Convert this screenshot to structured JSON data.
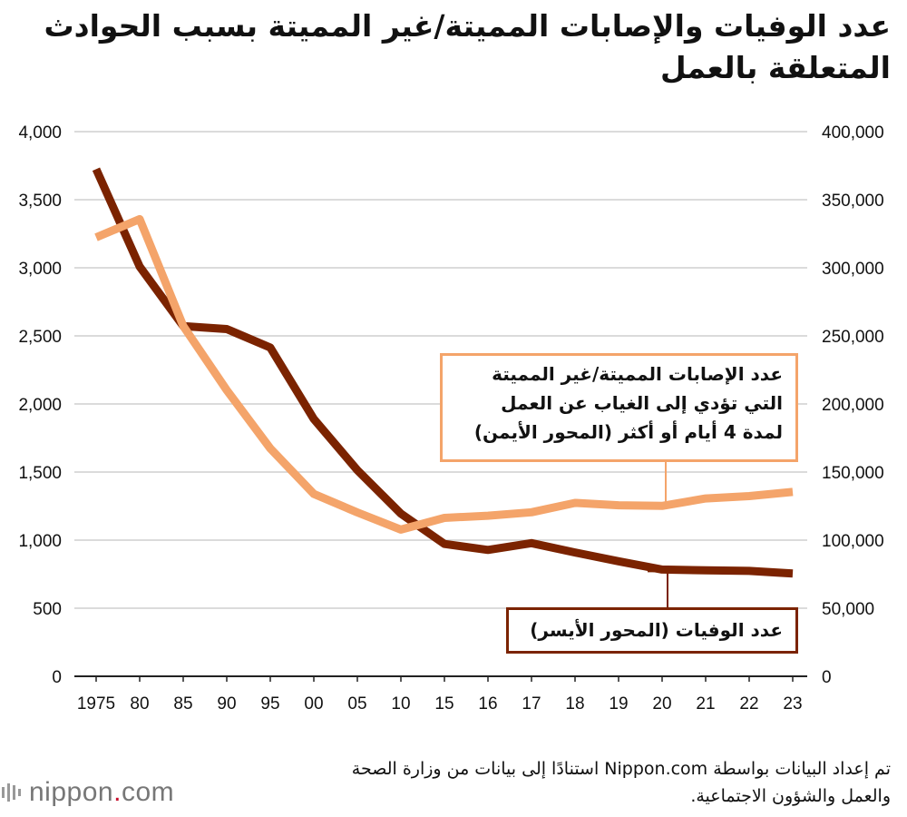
{
  "chart_data": {
    "type": "line",
    "title_lines": [
      "عدد الوفيات والإصابات المميتة/غير المميتة بسبب الحوادث",
      "المتعلقة بالعمل"
    ],
    "categories": [
      "1975",
      "80",
      "85",
      "90",
      "95",
      "00",
      "05",
      "10",
      "15",
      "16",
      "17",
      "18",
      "19",
      "20",
      "21",
      "22",
      "23"
    ],
    "left_axis": {
      "min": 0,
      "max": 4000,
      "ticks": [
        "0",
        "500",
        "1,000",
        "1,500",
        "2,000",
        "2,500",
        "3,000",
        "3,500",
        "4,000"
      ]
    },
    "right_axis": {
      "min": 0,
      "max": 400000,
      "ticks": [
        "0",
        "50,000",
        "100,000",
        "150,000",
        "200,000",
        "250,000",
        "300,000",
        "350,000",
        "400,000"
      ]
    },
    "grid": true,
    "series": [
      {
        "name": "عدد الوفيات (المحور الأيسر)",
        "axis": "left",
        "color": "#7b2300",
        "values": [
          3725,
          3009,
          2572,
          2550,
          2414,
          1889,
          1514,
          1195,
          972,
          928,
          978,
          909,
          845,
          784,
          778,
          774,
          755
        ]
      },
      {
        "name": "عدد الإصابات المميتة/غير المميتة التي تؤدي إلى الغياب عن العمل لمدة 4 أيام أو أكثر (المحور الأيمن)",
        "axis": "right",
        "color": "#f4a46a",
        "values": [
          322322,
          335706,
          257240,
          210108,
          167316,
          133948,
          120354,
          107759,
          116311,
          117910,
          120460,
          127329,
          125611,
          125115,
          130586,
          132355,
          135371
        ]
      }
    ]
  },
  "callouts": {
    "injuries": [
      "عدد الإصابات المميتة/غير المميتة",
      "التي تؤدي إلى الغياب عن العمل",
      "لمدة 4 أيام أو أكثر (المحور الأيمن)"
    ],
    "deaths": "عدد الوفيات (المحور الأيسر)"
  },
  "footer": {
    "source_line1": "تم إعداد البيانات بواسطة Nippon.com استنادًا إلى بيانات من وزارة الصحة",
    "source_line2": "والعمل والشؤون الاجتماعية."
  },
  "logo": {
    "text_main": "nippon",
    "text_dot": ".",
    "text_tld": "com"
  }
}
